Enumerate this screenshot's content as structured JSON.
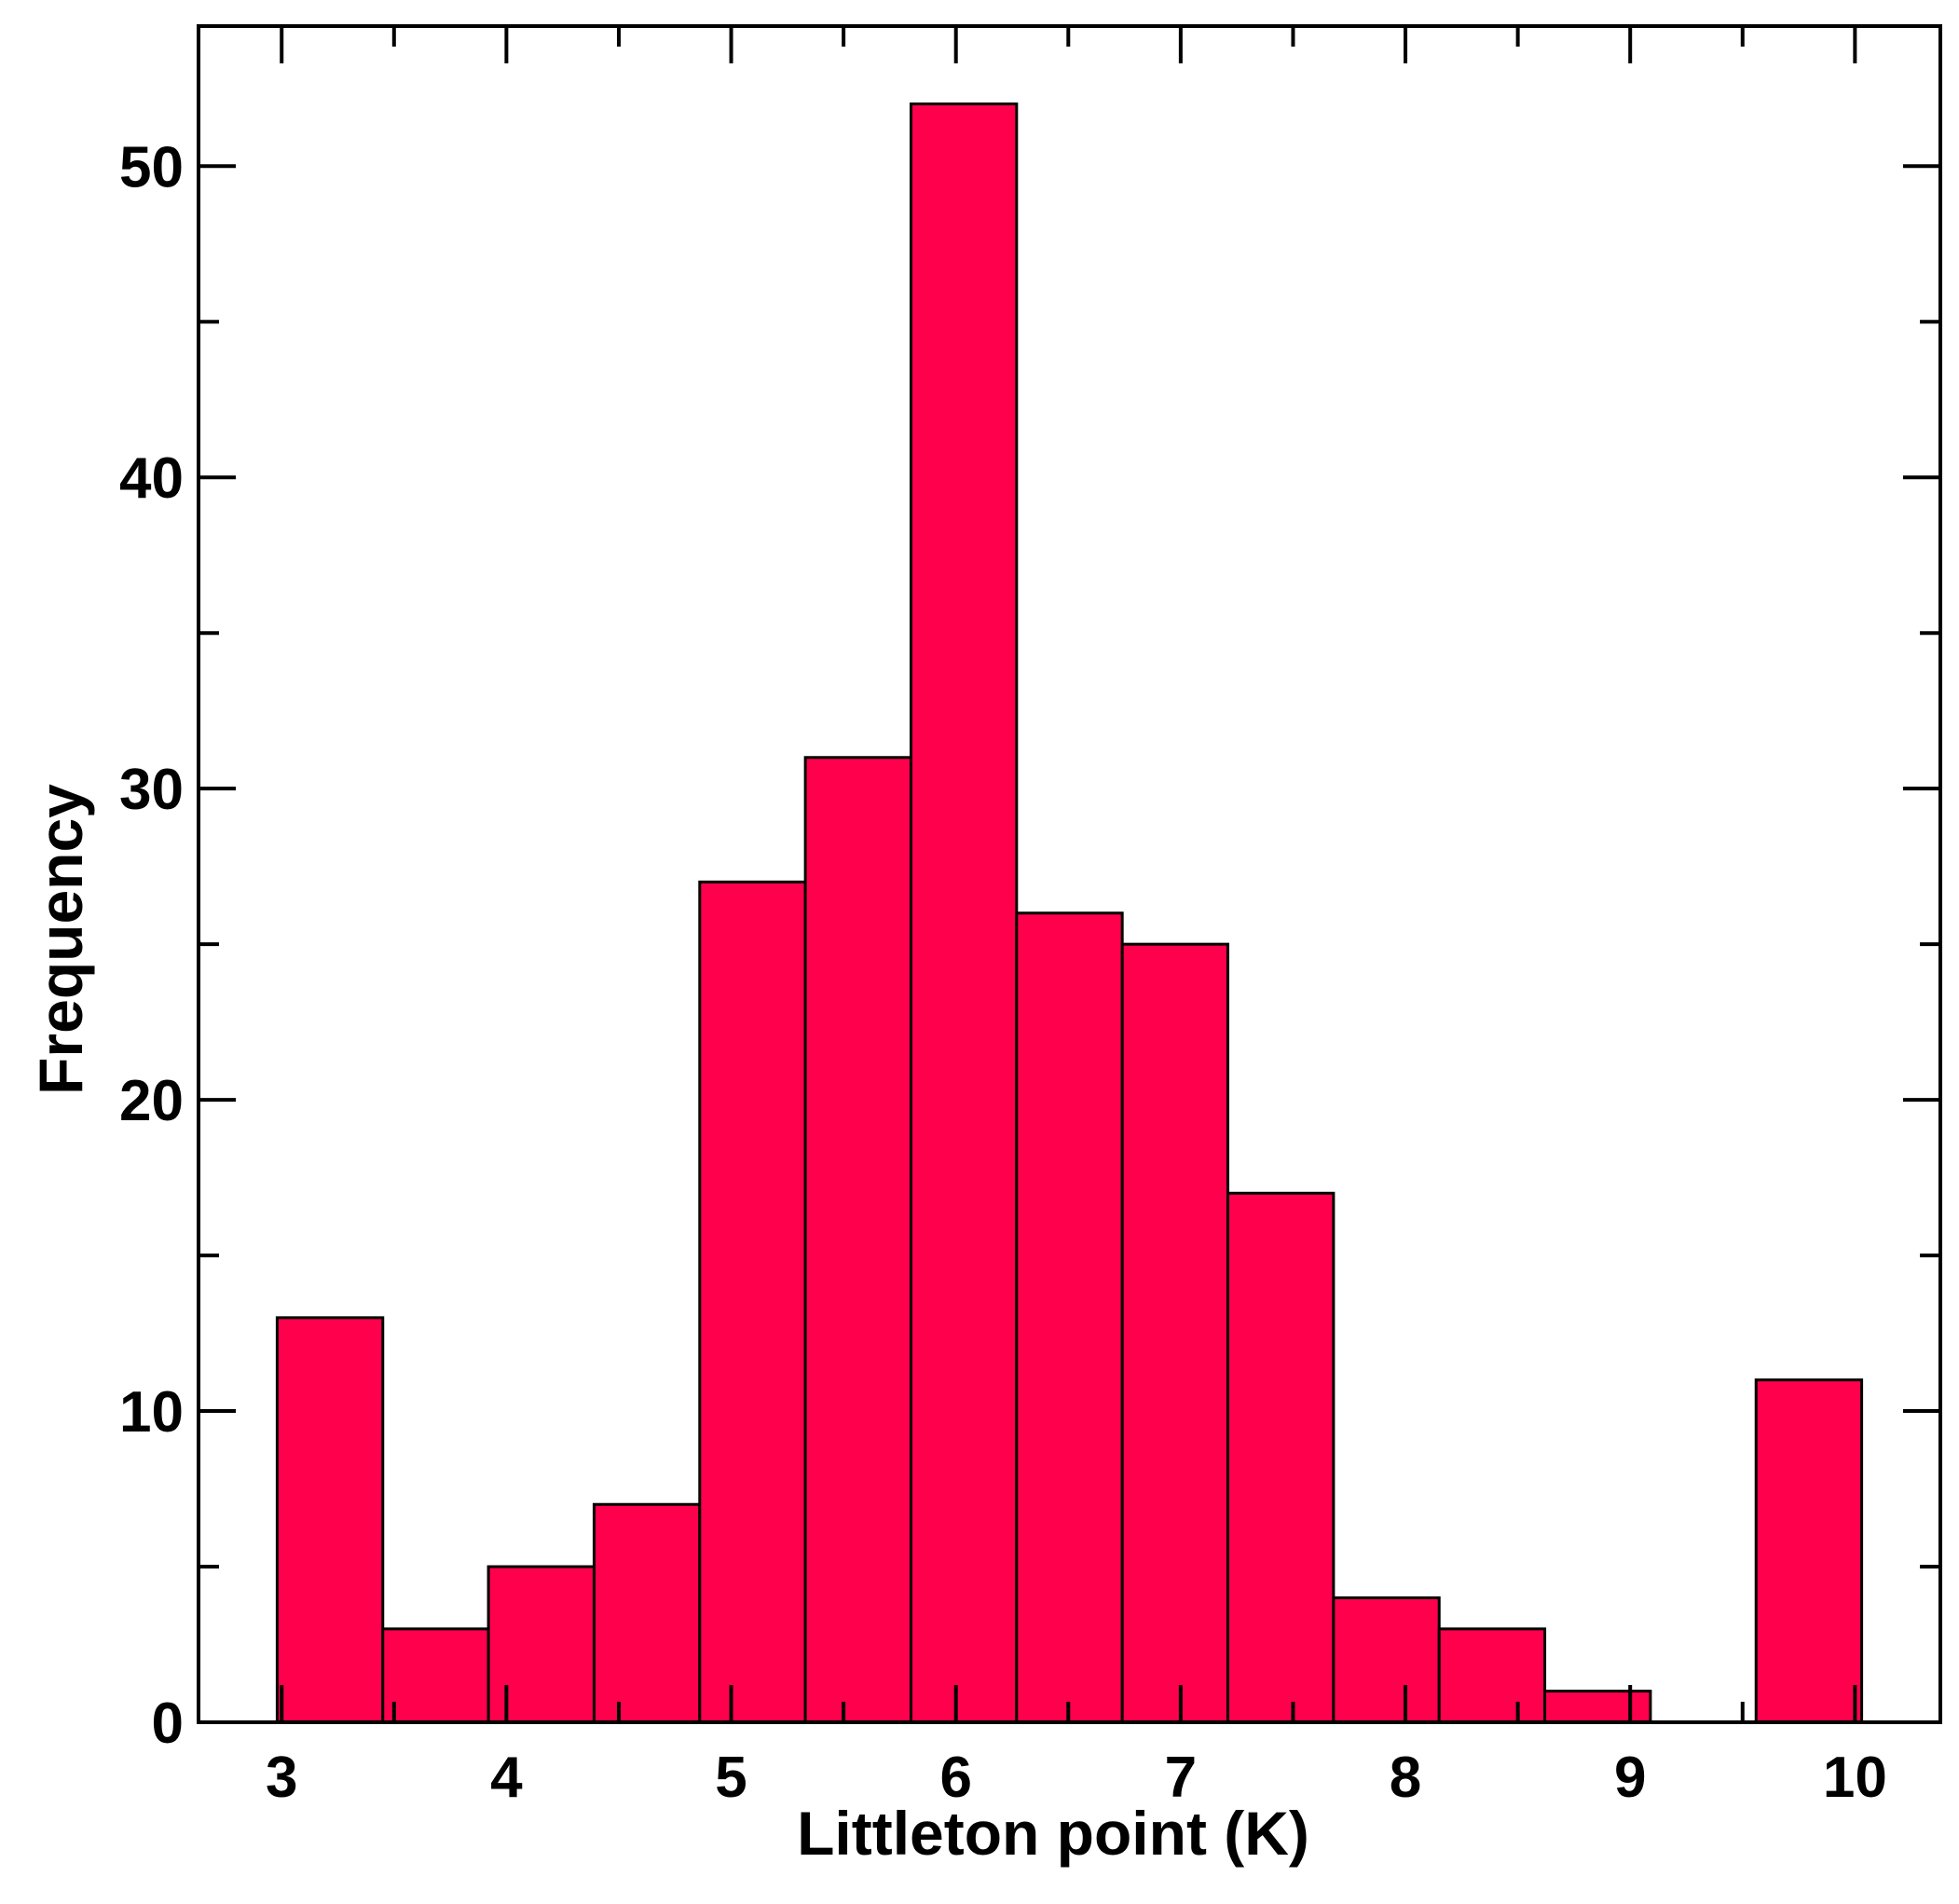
{
  "chart_data": {
    "type": "bar",
    "xlabel": "Littleton point (K)",
    "ylabel": "Frequency",
    "xlim": [
      2.63,
      10.38
    ],
    "ylim": [
      0,
      54.5
    ],
    "x_ticks": [
      3,
      4,
      5,
      6,
      7,
      8,
      9,
      10
    ],
    "y_ticks": [
      0,
      10,
      20,
      30,
      40,
      50
    ],
    "bin_edges": [
      2.98,
      3.45,
      3.92,
      4.39,
      4.86,
      5.33,
      5.8,
      6.27,
      6.74,
      7.21,
      7.68,
      8.15,
      8.62,
      9.09,
      9.56,
      10.03
    ],
    "values": [
      13,
      3,
      5,
      7,
      27,
      31,
      52,
      26,
      25,
      17,
      4,
      3,
      1,
      0,
      11
    ],
    "bar_color": "#ff004d",
    "edge_color": "#000000",
    "grid": false
  }
}
